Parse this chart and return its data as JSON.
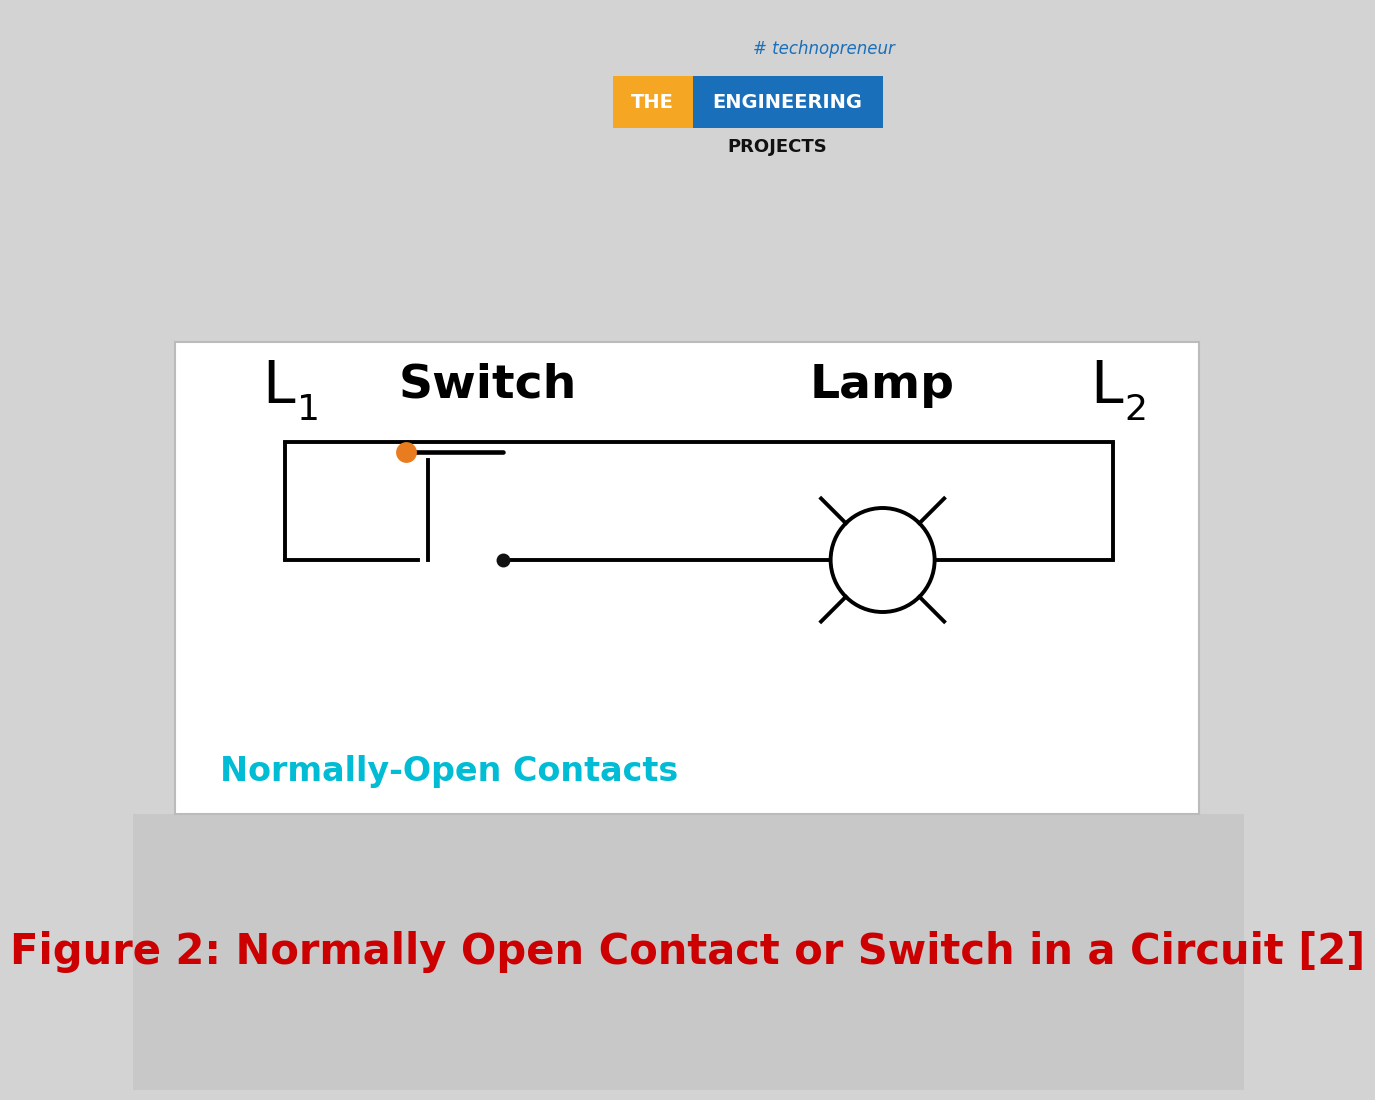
{
  "bg_color": "#d3d3d3",
  "panel_bg": "#ffffff",
  "title_text": "Figure 2: Normally Open Contact or Switch in a Circuit [2]",
  "title_color": "#cc0000",
  "title_fontsize": 30,
  "switch_label": "Switch",
  "lamp_label": "Lamp",
  "normally_open_label": "Normally-Open Contacts",
  "normally_open_color": "#00bcd4",
  "line_color": "#000000",
  "line_width": 2.8,
  "orange_dot_color": "#e87c1e",
  "black_dot_color": "#111111",
  "techno_color": "#1a6fba",
  "the_box_color": "#f5a623",
  "eng_box_color": "#1a6fba"
}
